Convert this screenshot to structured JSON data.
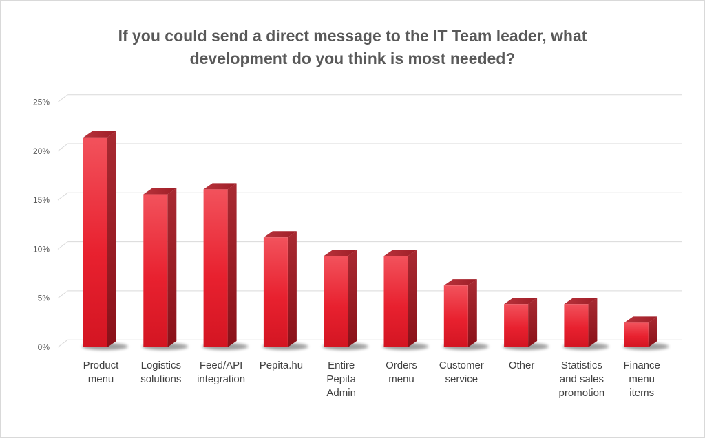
{
  "chart_data": {
    "type": "bar",
    "title_line1": "If you could send a direct message to the IT Team leader, what",
    "title_line2": "development do you think is most needed?",
    "categories": [
      [
        "Product",
        "menu"
      ],
      [
        "Logistics",
        "solutions"
      ],
      [
        "Feed/API",
        "integration"
      ],
      [
        "Pepita.hu"
      ],
      [
        "Entire",
        "Pepita",
        "Admin"
      ],
      [
        "Orders",
        "menu"
      ],
      [
        "Customer",
        "service"
      ],
      [
        "Other"
      ],
      [
        "Statistics",
        "and sales",
        "promotion"
      ],
      [
        "Finance",
        "menu",
        "items"
      ]
    ],
    "values": [
      21.4,
      15.6,
      16.1,
      11.2,
      9.3,
      9.3,
      6.3,
      4.4,
      4.4,
      2.5
    ],
    "yticks": [
      "0%",
      "5%",
      "10%",
      "15%",
      "20%",
      "25%"
    ],
    "ylim": [
      0,
      25
    ],
    "grid": true,
    "legend": "none",
    "bar_color": "#e8212f"
  }
}
